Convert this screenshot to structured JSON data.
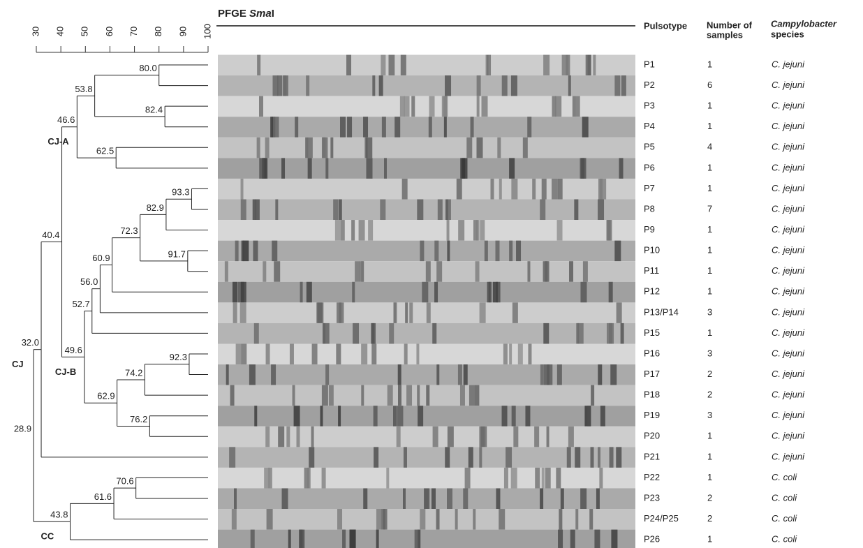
{
  "chart_data": {
    "type": "dendrogram",
    "gel_title": [
      "PFGE ",
      "Sma",
      "I"
    ],
    "headers": {
      "pulsotype": [
        "Pulsotype"
      ],
      "samples": [
        "Number of",
        "samples"
      ],
      "species": [
        "Campylobacter",
        "species"
      ]
    },
    "xlim": [
      30,
      100
    ],
    "xticks": [
      30,
      40,
      50,
      60,
      70,
      80,
      90,
      100
    ],
    "tree": {
      "label": "28.9",
      "value": 28.9,
      "children": [
        {
          "label": "32.0",
          "value": 32,
          "cluster": "CJ",
          "children": [
            {
              "label": "40.4",
              "value": 40.4,
              "children": [
                {
                  "label": "46.6",
                  "value": 46.6,
                  "cluster": "CJ-A",
                  "children": [
                    {
                      "label": "53.8",
                      "value": 53.8,
                      "children": [
                        {
                          "label": "80.0",
                          "value": 80,
                          "children": [
                            {
                              "pulsotype": "P1",
                              "samples": 1,
                              "species": "C. jejuni"
                            },
                            {
                              "pulsotype": "P2",
                              "samples": 6,
                              "species": "C. jejuni"
                            }
                          ]
                        },
                        {
                          "label": "82.4",
                          "value": 82.4,
                          "children": [
                            {
                              "pulsotype": "P3",
                              "samples": 1,
                              "species": "C. jejuni"
                            },
                            {
                              "pulsotype": "P4",
                              "samples": 1,
                              "species": "C. jejuni"
                            }
                          ]
                        }
                      ]
                    },
                    {
                      "label": "62.5",
                      "value": 62.5,
                      "children": [
                        {
                          "pulsotype": "P5",
                          "samples": 4,
                          "species": "C. jejuni"
                        },
                        {
                          "pulsotype": "P6",
                          "samples": 1,
                          "species": "C. jejuni"
                        }
                      ]
                    }
                  ]
                },
                {
                  "label": "49.6",
                  "value": 49.6,
                  "cluster": "CJ-B",
                  "children": [
                    {
                      "label": "52.7",
                      "value": 52.7,
                      "children": [
                        {
                          "label": "56.0",
                          "value": 56,
                          "children": [
                            {
                              "label": "60.9",
                              "value": 60.9,
                              "children": [
                                {
                                  "label": "72.3",
                                  "value": 72.3,
                                  "children": [
                                    {
                                      "label": "82.9",
                                      "value": 82.9,
                                      "children": [
                                        {
                                          "label": "93.3",
                                          "value": 93.3,
                                          "children": [
                                            {
                                              "pulsotype": "P7",
                                              "samples": 1,
                                              "species": "C. jejuni"
                                            },
                                            {
                                              "pulsotype": "P8",
                                              "samples": 7,
                                              "species": "C. jejuni"
                                            }
                                          ]
                                        },
                                        {
                                          "pulsotype": "P9",
                                          "samples": 1,
                                          "species": "C. jejuni"
                                        }
                                      ]
                                    },
                                    {
                                      "label": "91.7",
                                      "value": 91.7,
                                      "children": [
                                        {
                                          "pulsotype": "P10",
                                          "samples": 1,
                                          "species": "C. jejuni"
                                        },
                                        {
                                          "pulsotype": "P11",
                                          "samples": 1,
                                          "species": "C. jejuni"
                                        }
                                      ]
                                    }
                                  ]
                                },
                                {
                                  "pulsotype": "P12",
                                  "samples": 1,
                                  "species": "C. jejuni"
                                }
                              ]
                            },
                            {
                              "pulsotype": "P13/P14",
                              "samples": 3,
                              "species": "C. jejuni"
                            }
                          ]
                        },
                        {
                          "pulsotype": "P15",
                          "samples": 1,
                          "species": "C. jejuni"
                        }
                      ]
                    },
                    {
                      "label": "62.9",
                      "value": 62.9,
                      "children": [
                        {
                          "label": "74.2",
                          "value": 74.2,
                          "children": [
                            {
                              "label": "92.3",
                              "value": 92.3,
                              "children": [
                                {
                                  "pulsotype": "P16",
                                  "samples": 3,
                                  "species": "C. jejuni"
                                },
                                {
                                  "pulsotype": "P17",
                                  "samples": 2,
                                  "species": "C. jejuni"
                                }
                              ]
                            },
                            {
                              "pulsotype": "P18",
                              "samples": 2,
                              "species": "C. jejuni"
                            }
                          ]
                        },
                        {
                          "label": "76.2",
                          "value": 76.2,
                          "children": [
                            {
                              "pulsotype": "P19",
                              "samples": 3,
                              "species": "C. jejuni"
                            },
                            {
                              "pulsotype": "P20",
                              "samples": 1,
                              "species": "C. jejuni"
                            }
                          ]
                        }
                      ]
                    }
                  ]
                }
              ]
            },
            {
              "pulsotype": "P21",
              "samples": 1,
              "species": "C. jejuni"
            }
          ]
        },
        {
          "label": "43.8",
          "value": 43.8,
          "cluster": "CC",
          "children": [
            {
              "label": "61.6",
              "value": 61.6,
              "children": [
                {
                  "label": "70.6",
                  "value": 70.6,
                  "children": [
                    {
                      "pulsotype": "P22",
                      "samples": 1,
                      "species": "C. coli"
                    },
                    {
                      "pulsotype": "P23",
                      "samples": 2,
                      "species": "C. coli"
                    }
                  ]
                },
                {
                  "pulsotype": "P24/P25",
                  "samples": 2,
                  "species": "C. coli"
                }
              ]
            },
            {
              "pulsotype": "P26",
              "samples": 1,
              "species": "C. coli"
            }
          ]
        }
      ]
    }
  }
}
